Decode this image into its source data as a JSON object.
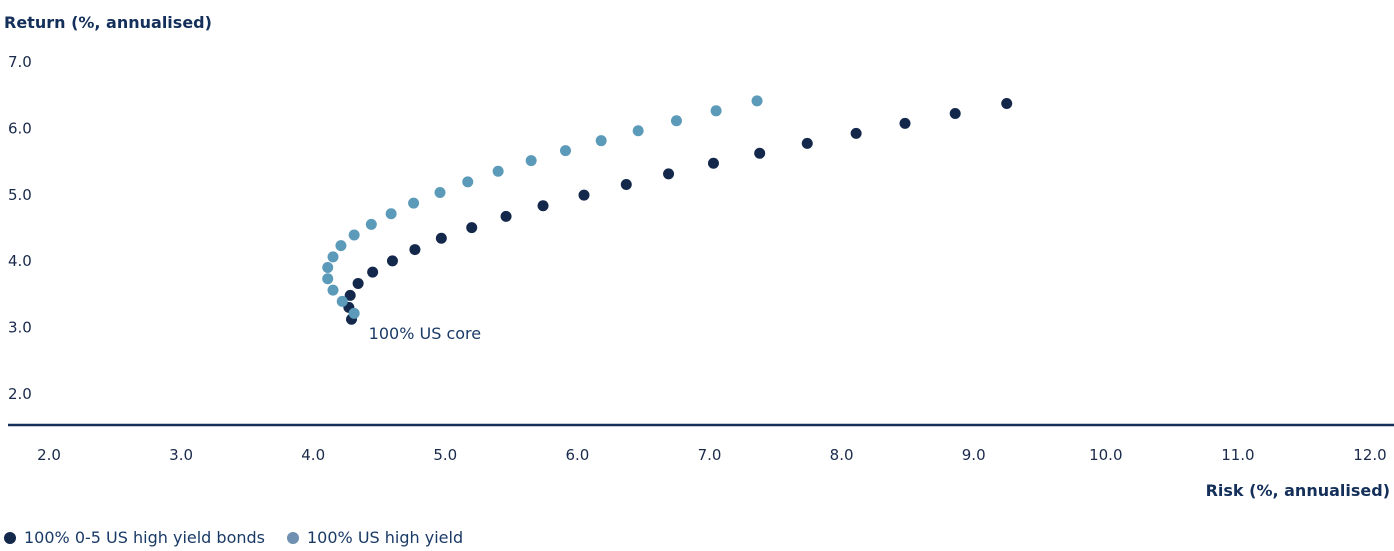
{
  "chart_data": {
    "type": "scatter",
    "ylabel": "Return (%, annualised)",
    "xlabel": "Risk (%, annualised)",
    "xlim": [
      2.0,
      12.0
    ],
    "ylim": [
      2.0,
      7.0
    ],
    "xticks": [
      "2.0",
      "3.0",
      "4.0",
      "5.0",
      "6.0",
      "7.0",
      "8.0",
      "9.0",
      "10.0",
      "11.0",
      "12.0"
    ],
    "yticks": [
      "2.0",
      "3.0",
      "4.0",
      "5.0",
      "6.0",
      "7.0"
    ],
    "annotations": [
      {
        "text": "100% US core",
        "x": 4.42,
        "y": 2.9
      }
    ],
    "series": [
      {
        "name": "100% 0-5 US high yield bonds",
        "color": "#14284b",
        "points": [
          [
            4.29,
            3.11
          ],
          [
            4.27,
            3.29
          ],
          [
            4.28,
            3.47
          ],
          [
            4.34,
            3.65
          ],
          [
            4.45,
            3.82
          ],
          [
            4.6,
            3.99
          ],
          [
            4.77,
            4.16
          ],
          [
            4.97,
            4.33
          ],
          [
            5.2,
            4.49
          ],
          [
            5.46,
            4.66
          ],
          [
            5.74,
            4.82
          ],
          [
            6.05,
            4.98
          ],
          [
            6.37,
            5.14
          ],
          [
            6.69,
            5.3
          ],
          [
            7.03,
            5.46
          ],
          [
            7.38,
            5.61
          ],
          [
            7.74,
            5.76
          ],
          [
            8.11,
            5.91
          ],
          [
            8.48,
            6.06
          ],
          [
            8.86,
            6.21
          ],
          [
            9.25,
            6.36
          ]
        ]
      },
      {
        "name": "100% US high yield",
        "color": "#5b9ab8",
        "points": [
          [
            4.31,
            3.2
          ],
          [
            4.22,
            3.38
          ],
          [
            4.15,
            3.55
          ],
          [
            4.11,
            3.72
          ],
          [
            4.11,
            3.89
          ],
          [
            4.15,
            4.05
          ],
          [
            4.21,
            4.22
          ],
          [
            4.31,
            4.38
          ],
          [
            4.44,
            4.54
          ],
          [
            4.59,
            4.7
          ],
          [
            4.76,
            4.86
          ],
          [
            4.96,
            5.02
          ],
          [
            5.17,
            5.18
          ],
          [
            5.4,
            5.34
          ],
          [
            5.65,
            5.5
          ],
          [
            5.91,
            5.65
          ],
          [
            6.18,
            5.8
          ],
          [
            6.46,
            5.95
          ],
          [
            6.75,
            6.1
          ],
          [
            7.05,
            6.25
          ],
          [
            7.36,
            6.4
          ]
        ]
      }
    ],
    "legend_position": "bottom-left",
    "grid": false
  }
}
